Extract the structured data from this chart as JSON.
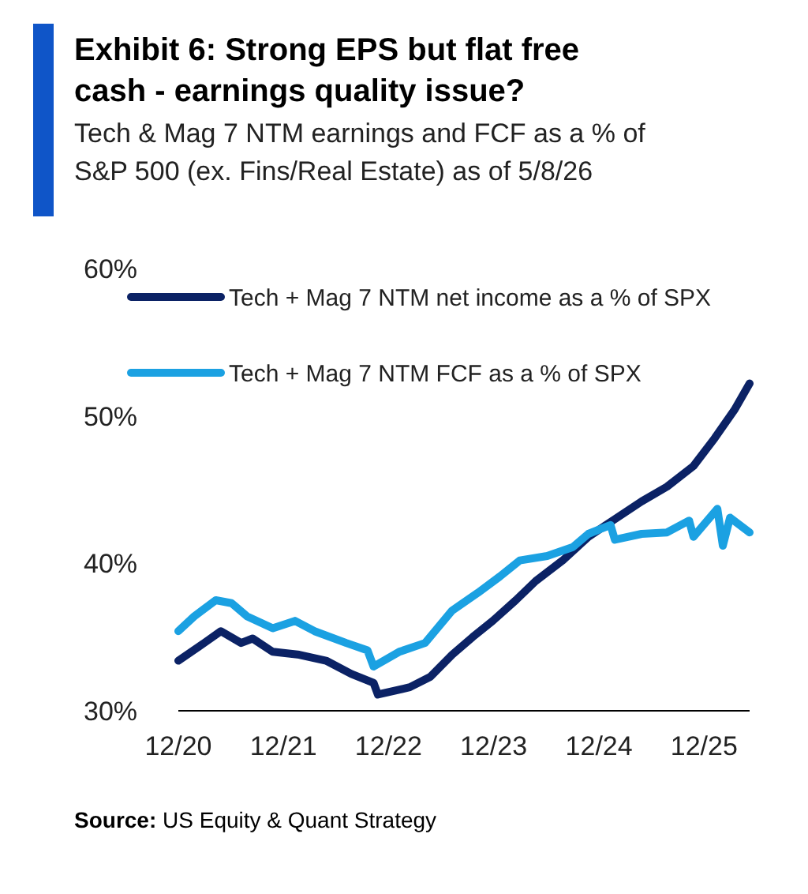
{
  "chart_data": {
    "type": "line",
    "title": "Exhibit 6: Strong EPS but flat free cash  - earnings quality issue?",
    "subtitle": "Tech & Mag 7 NTM earnings and FCF as a % of S&P 500 (ex. Fins/Real Estate) as of 5/8/26",
    "annotations": [
      "Source: US Equity & Quant Strategy"
    ],
    "series": [
      {
        "name": "Tech + Mag 7 NTM net income as a % of SPX",
        "color": "#0b2265",
        "x": [
          "2020-12-01",
          "2021-02-07",
          "2021-04-28",
          "2021-07-07",
          "2021-08-16",
          "2021-10-25",
          "2022-01-25",
          "2022-04-28",
          "2022-07-25",
          "2022-10-10",
          "2022-10-25",
          "2023-02-13",
          "2023-04-25",
          "2023-07-10",
          "2023-09-19",
          "2023-11-28",
          "2024-02-16",
          "2024-04-25",
          "2024-07-28",
          "2024-10-25",
          "2025-01-25",
          "2025-04-28",
          "2025-07-25",
          "2025-10-25",
          "2026-01-07",
          "2026-03-16",
          "2026-05-08"
        ],
        "values": [
          33.4,
          34.3,
          35.4,
          34.6,
          34.9,
          34.0,
          33.8,
          33.4,
          32.5,
          31.9,
          31.1,
          31.6,
          32.3,
          33.8,
          35.0,
          36.1,
          37.5,
          38.8,
          40.2,
          41.8,
          43.0,
          44.2,
          45.2,
          46.6,
          48.5,
          50.4,
          52.2
        ]
      },
      {
        "name": "Tech + Mag 7 NTM FCF as a % of SPX",
        "color": "#1ba1e2",
        "x": [
          "2020-12-01",
          "2021-01-25",
          "2021-04-10",
          "2021-06-04",
          "2021-07-28",
          "2021-10-25",
          "2022-01-10",
          "2022-03-19",
          "2022-07-07",
          "2022-09-19",
          "2022-10-10",
          "2023-01-07",
          "2023-04-07",
          "2023-07-10",
          "2023-10-07",
          "2023-12-22",
          "2024-03-01",
          "2024-06-04",
          "2024-09-01",
          "2024-10-25",
          "2025-01-10",
          "2025-01-25",
          "2025-04-28",
          "2025-07-25",
          "2025-10-10",
          "2025-10-25",
          "2026-01-16",
          "2026-02-04",
          "2026-03-01",
          "2026-05-08"
        ],
        "values": [
          35.4,
          36.4,
          37.5,
          37.3,
          36.4,
          35.6,
          36.1,
          35.4,
          34.6,
          34.1,
          33.0,
          34.0,
          34.6,
          36.8,
          38.0,
          39.1,
          40.2,
          40.5,
          41.1,
          42.0,
          42.6,
          41.6,
          42.0,
          42.1,
          42.9,
          41.8,
          43.7,
          41.2,
          43.1,
          42.1
        ]
      }
    ],
    "xlim": [
      "2020-12-01",
      "2026-05-08"
    ],
    "xticks": [
      {
        "value": "2020-12-01",
        "label": "12/20"
      },
      {
        "value": "2021-12-01",
        "label": "12/21"
      },
      {
        "value": "2022-12-01",
        "label": "12/22"
      },
      {
        "value": "2023-12-01",
        "label": "12/23"
      },
      {
        "value": "2024-12-01",
        "label": "12/24"
      },
      {
        "value": "2025-12-01",
        "label": "12/25"
      }
    ],
    "ylim": [
      30,
      60
    ],
    "yticks": [
      {
        "value": 30,
        "label": "30%"
      },
      {
        "value": 40,
        "label": "40%"
      },
      {
        "value": 50,
        "label": "50%"
      },
      {
        "value": 60,
        "label": "60%"
      }
    ],
    "grid": false,
    "legend": "top left",
    "line_style": "solid",
    "marker": "none"
  }
}
